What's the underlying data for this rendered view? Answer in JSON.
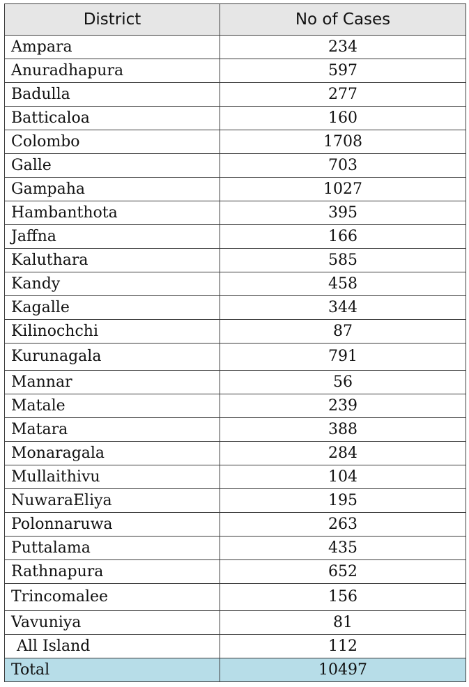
{
  "table": {
    "headers": {
      "district": "District",
      "cases": "No of Cases"
    },
    "rows": [
      {
        "district": "Ampara",
        "cases": "234"
      },
      {
        "district": "Anuradhapura",
        "cases": "597"
      },
      {
        "district": "Badulla",
        "cases": "277"
      },
      {
        "district": "Batticaloa",
        "cases": "160"
      },
      {
        "district": "Colombo",
        "cases": "1708"
      },
      {
        "district": "Galle",
        "cases": "703"
      },
      {
        "district": "Gampaha",
        "cases": "1027"
      },
      {
        "district": "Hambanthota",
        "cases": "395"
      },
      {
        "district": "Jaffna",
        "cases": "166"
      },
      {
        "district": "Kaluthara",
        "cases": "585"
      },
      {
        "district": "Kandy",
        "cases": "458"
      },
      {
        "district": "Kagalle",
        "cases": "344"
      },
      {
        "district": "Kilinochchi",
        "cases": "87"
      },
      {
        "district": "Kurunagala",
        "cases": "791"
      },
      {
        "district": "Mannar",
        "cases": "56"
      },
      {
        "district": "Matale",
        "cases": "239"
      },
      {
        "district": "Matara",
        "cases": "388"
      },
      {
        "district": "Monaragala",
        "cases": "284"
      },
      {
        "district": "Mullaithivu",
        "cases": "104"
      },
      {
        "district": "NuwaraEliya",
        "cases": "195"
      },
      {
        "district": "Polonnaruwa",
        "cases": "263"
      },
      {
        "district": "Puttalama",
        "cases": "435"
      },
      {
        "district": "Rathnapura",
        "cases": "652"
      },
      {
        "district": "Trincomalee",
        "cases": "156"
      },
      {
        "district": "Vavuniya",
        "cases": "81"
      },
      {
        "district": "All Island",
        "cases": "112"
      }
    ],
    "total": {
      "label": "Total",
      "cases": "10497"
    }
  },
  "colors": {
    "header_bg": "#e6e6e6",
    "total_bg": "#b7dde8",
    "border": "#3a3a3a"
  }
}
